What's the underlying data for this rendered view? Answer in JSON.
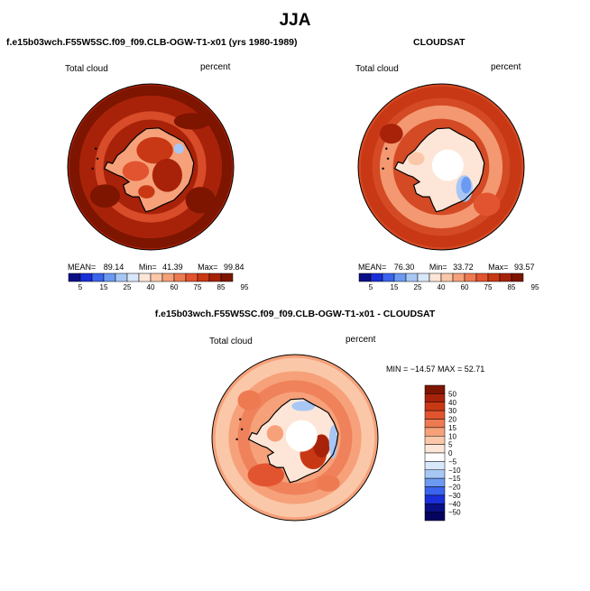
{
  "page": {
    "title": "JJA"
  },
  "chart_data": [
    {
      "type": "heatmap",
      "title": "f.e15b03wch.F55W5SC.f09_f09.CLB-OGW-T1-x01 (yrs 1980-1989)",
      "left_label": "Total cloud",
      "right_label": "percent",
      "stats": {
        "mean_label": "MEAN=",
        "mean": "89.14",
        "min_label": "Min=",
        "min": "41.39",
        "max_label": "Max=",
        "max": "99.84"
      },
      "colorbar_labels": [
        "5",
        "15",
        "25",
        "40",
        "60",
        "75",
        "85",
        "95"
      ],
      "colors": [
        "#0a0f86",
        "#1a2fd8",
        "#3a64ee",
        "#6c9af2",
        "#a8c7f5",
        "#d9e7fb",
        "#fde6d8",
        "#fbc7a9",
        "#f6a17a",
        "#ee7a52",
        "#e2542f",
        "#c93815",
        "#a8220a",
        "#7d1500"
      ],
      "ocean_color": "#a8220a",
      "region": "Antarctica (south polar stereographic)"
    },
    {
      "type": "heatmap",
      "title": "CLOUDSAT",
      "left_label": "Total cloud",
      "right_label": "percent",
      "stats": {
        "mean_label": "MEAN=",
        "mean": "76.30",
        "min_label": "Min=",
        "min": "33.72",
        "max_label": "Max=",
        "max": "93.57"
      },
      "colorbar_labels": [
        "5",
        "15",
        "25",
        "40",
        "60",
        "75",
        "85",
        "95"
      ],
      "colors": [
        "#0a0f86",
        "#1a2fd8",
        "#3a64ee",
        "#6c9af2",
        "#a8c7f5",
        "#d9e7fb",
        "#fde6d8",
        "#fbc7a9",
        "#f6a17a",
        "#ee7a52",
        "#e2542f",
        "#c93815",
        "#a8220a",
        "#7d1500"
      ],
      "ocean_color": "#d44a24",
      "region": "Antarctica (south polar stereographic)"
    },
    {
      "type": "heatmap",
      "title": "f.e15b03wch.F55W5SC.f09_f09.CLB-OGW-T1-x01 - CLOUDSAT",
      "left_label": "Total cloud",
      "right_label": "percent",
      "stats_text": "MIN = −14.57  MAX =  52.71",
      "colorbar_labels": [
        "50",
        "40",
        "30",
        "20",
        "15",
        "10",
        "5",
        "0",
        "−5",
        "−10",
        "−15",
        "−20",
        "−30",
        "−40",
        "−50"
      ],
      "colors": [
        "#7d1500",
        "#a8220a",
        "#c93815",
        "#e2542f",
        "#ee7a52",
        "#f6a17a",
        "#fbc7a9",
        "#fde6d8",
        "#ffffff",
        "#d9e7fb",
        "#a8c7f5",
        "#6c9af2",
        "#3a64ee",
        "#1a2fd8",
        "#0a0f86",
        "#05035e"
      ],
      "ocean_color": "#f6a17a",
      "region": "Antarctica (south polar stereographic)"
    }
  ]
}
